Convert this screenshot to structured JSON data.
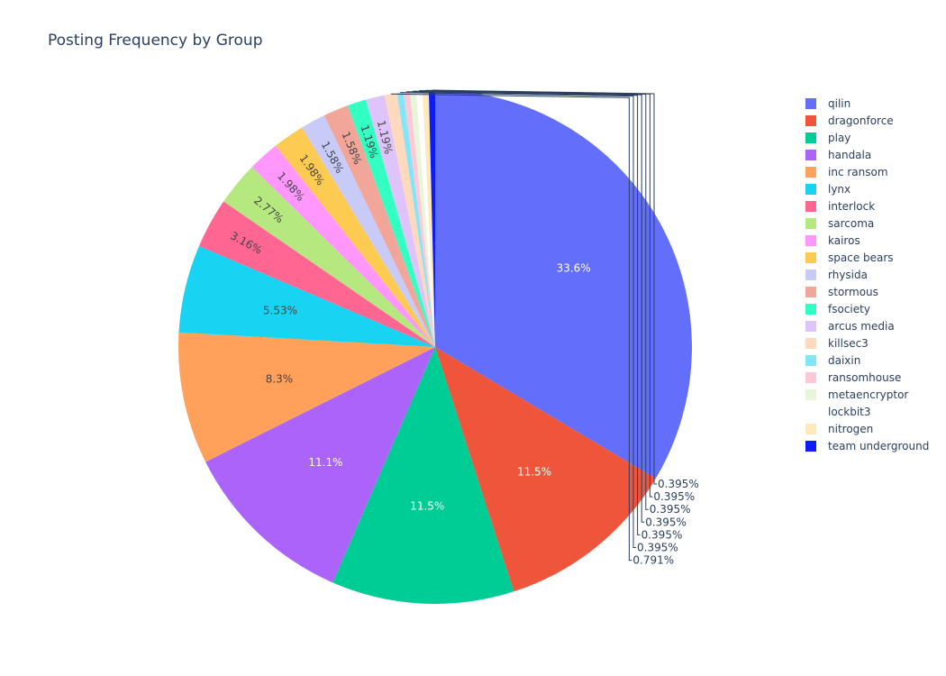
{
  "chart_data": {
    "type": "pie",
    "title": "Posting Frequency by Group",
    "legend_position": "right",
    "sort": "descending",
    "direction": "clockwise",
    "slices": [
      {
        "label": "qilin",
        "percent": 33.6,
        "text": "33.6%",
        "color": "#636efa"
      },
      {
        "label": "dragonforce",
        "percent": 11.5,
        "text": "11.5%",
        "color": "#EF553B"
      },
      {
        "label": "play",
        "percent": 11.5,
        "text": "11.5%",
        "color": "#00cc96"
      },
      {
        "label": "handala",
        "percent": 11.1,
        "text": "11.1%",
        "color": "#ab63fa"
      },
      {
        "label": "inc ransom",
        "percent": 8.3,
        "text": "8.3%",
        "color": "#FFA15A"
      },
      {
        "label": "lynx",
        "percent": 5.53,
        "text": "5.53%",
        "color": "#19d3f3"
      },
      {
        "label": "interlock",
        "percent": 3.16,
        "text": "3.16%",
        "color": "#FF6692"
      },
      {
        "label": "sarcoma",
        "percent": 2.77,
        "text": "2.77%",
        "color": "#B6E880"
      },
      {
        "label": "kairos",
        "percent": 1.98,
        "text": "1.98%",
        "color": "#FF97FF"
      },
      {
        "label": "space bears",
        "percent": 1.98,
        "text": "1.98%",
        "color": "#FECB52"
      },
      {
        "label": "rhysida",
        "percent": 1.58,
        "text": "1.58%",
        "color": "#C8CBF8"
      },
      {
        "label": "stormous",
        "percent": 1.58,
        "text": "1.58%",
        "color": "#F2A69A"
      },
      {
        "label": "fsociety",
        "percent": 1.19,
        "text": "1.19%",
        "color": "#33FFC2"
      },
      {
        "label": "arcus media",
        "percent": 1.19,
        "text": "1.19%",
        "color": "#DEC4FA"
      },
      {
        "label": "killsec3",
        "percent": 0.791,
        "text": "0.791%",
        "color": "#FFD9BD"
      },
      {
        "label": "daixin",
        "percent": 0.395,
        "text": "0.395%",
        "color": "#80E6F8"
      },
      {
        "label": "ransomhouse",
        "percent": 0.395,
        "text": "0.395%",
        "color": "#FFC8D7"
      },
      {
        "label": "metaencryptor",
        "percent": 0.395,
        "text": "0.395%",
        "color": "#E8F5D8"
      },
      {
        "label": "lockbit3",
        "percent": 0.395,
        "text": "0.395%",
        "color": "#FFFFFF"
      },
      {
        "label": "nitrogen",
        "percent": 0.395,
        "text": "0.395%",
        "color": "#FFE8BA"
      },
      {
        "label": "team underground",
        "percent": 0.395,
        "text": "0.395%",
        "color": "#0c1ef5"
      }
    ]
  }
}
